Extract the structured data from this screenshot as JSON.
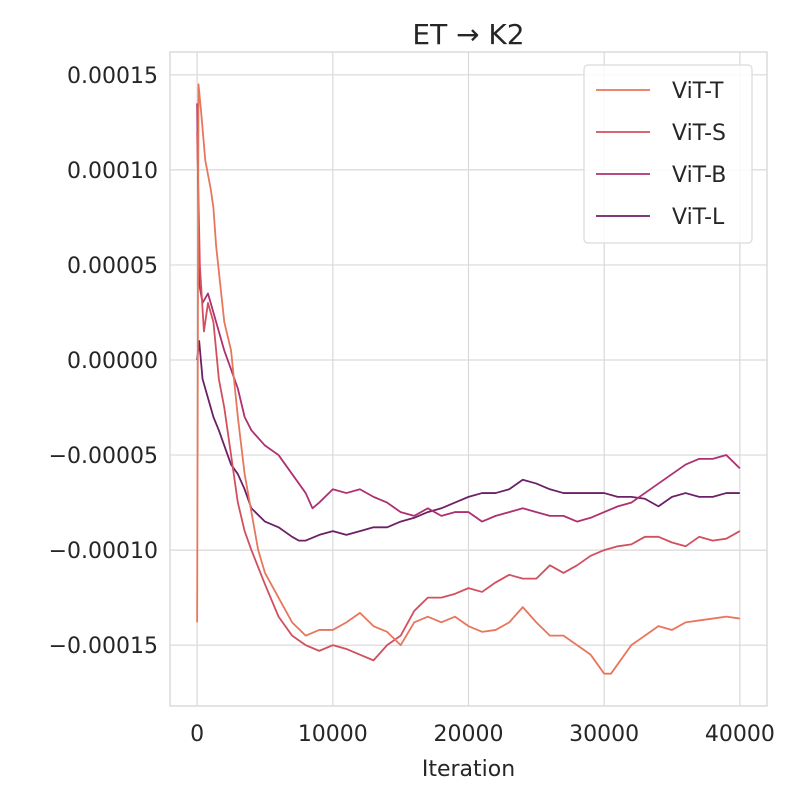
{
  "chart_data": {
    "type": "line",
    "title": "ET → K2",
    "xlabel": "Iteration",
    "ylabel": "",
    "xlim": [
      -2000,
      42000
    ],
    "ylim": [
      -0.000182,
      0.000162
    ],
    "xticks": [
      0,
      10000,
      20000,
      30000,
      40000
    ],
    "xtick_labels": [
      "0",
      "10000",
      "20000",
      "30000",
      "40000"
    ],
    "yticks": [
      0.00015,
      0.0001,
      5e-05,
      0.0,
      -5e-05,
      -0.0001,
      -0.00015
    ],
    "ytick_labels": [
      "0.00015",
      "0.00010",
      "0.00005",
      "0.00000",
      "−0.00005",
      "−0.00010",
      "−0.00015"
    ],
    "grid": true,
    "legend_position": "top-right",
    "series": [
      {
        "name": "ViT-T",
        "color": "#e8765c",
        "x": [
          0,
          100,
          300,
          600,
          1000,
          1200,
          1400,
          1700,
          2000,
          2500,
          3000,
          3500,
          4000,
          4500,
          5000,
          6000,
          7000,
          8000,
          9000,
          10000,
          11000,
          12000,
          13000,
          14000,
          15000,
          16000,
          17000,
          18000,
          19000,
          20000,
          21000,
          22000,
          23000,
          24000,
          25000,
          26000,
          27000,
          28000,
          29000,
          30000,
          30500,
          31000,
          32000,
          33000,
          34000,
          35000,
          36000,
          37000,
          38000,
          39000,
          40000
        ],
        "y": [
          -0.000138,
          0.000145,
          0.00013,
          0.000105,
          9e-05,
          8e-05,
          6e-05,
          4e-05,
          2e-05,
          5e-06,
          -3e-05,
          -6e-05,
          -8e-05,
          -0.0001,
          -0.000112,
          -0.000125,
          -0.000138,
          -0.000145,
          -0.000142,
          -0.000142,
          -0.000138,
          -0.000133,
          -0.00014,
          -0.000143,
          -0.00015,
          -0.000138,
          -0.000135,
          -0.000138,
          -0.000135,
          -0.00014,
          -0.000143,
          -0.000142,
          -0.000138,
          -0.00013,
          -0.000138,
          -0.000145,
          -0.000145,
          -0.00015,
          -0.000155,
          -0.000165,
          -0.000165,
          -0.00016,
          -0.00015,
          -0.000145,
          -0.00014,
          -0.000142,
          -0.000138,
          -0.000137,
          -0.000136,
          -0.000135,
          -0.000136
        ]
      },
      {
        "name": "ViT-S",
        "color": "#d24f5e",
        "x": [
          0,
          200,
          500,
          800,
          1200,
          1600,
          2000,
          2500,
          3000,
          3500,
          4000,
          5000,
          6000,
          7000,
          8000,
          9000,
          10000,
          11000,
          12000,
          13000,
          14000,
          15000,
          16000,
          17000,
          18000,
          19000,
          20000,
          21000,
          22000,
          23000,
          24000,
          25000,
          26000,
          27000,
          28000,
          29000,
          30000,
          31000,
          32000,
          33000,
          34000,
          35000,
          36000,
          37000,
          38000,
          39000,
          40000
        ],
        "y": [
          0.00012,
          5e-05,
          1.5e-05,
          3e-05,
          2e-05,
          -1e-05,
          -2.5e-05,
          -5e-05,
          -7.5e-05,
          -9e-05,
          -0.0001,
          -0.000118,
          -0.000135,
          -0.000145,
          -0.00015,
          -0.000153,
          -0.00015,
          -0.000152,
          -0.000155,
          -0.000158,
          -0.00015,
          -0.000145,
          -0.000132,
          -0.000125,
          -0.000125,
          -0.000123,
          -0.00012,
          -0.000122,
          -0.000117,
          -0.000113,
          -0.000115,
          -0.000115,
          -0.000108,
          -0.000112,
          -0.000108,
          -0.000103,
          -0.0001,
          -9.8e-05,
          -9.7e-05,
          -9.3e-05,
          -9.3e-05,
          -9.6e-05,
          -9.8e-05,
          -9.3e-05,
          -9.5e-05,
          -9.4e-05,
          -9e-05
        ]
      },
      {
        "name": "ViT-B",
        "color": "#ad3170",
        "x": [
          0,
          150,
          400,
          800,
          1200,
          1600,
          2000,
          2500,
          3000,
          3500,
          4000,
          5000,
          6000,
          7000,
          8000,
          8500,
          9000,
          10000,
          11000,
          12000,
          13000,
          14000,
          15000,
          16000,
          17000,
          18000,
          19000,
          20000,
          21000,
          22000,
          23000,
          24000,
          25000,
          26000,
          27000,
          28000,
          29000,
          30000,
          31000,
          32000,
          33000,
          34000,
          35000,
          36000,
          37000,
          38000,
          39000,
          40000
        ],
        "y": [
          0.000135,
          4e-05,
          3e-05,
          3.5e-05,
          2.5e-05,
          1.5e-05,
          5e-06,
          -5e-06,
          -1.5e-05,
          -3e-05,
          -3.7e-05,
          -4.5e-05,
          -5e-05,
          -6e-05,
          -7e-05,
          -7.8e-05,
          -7.5e-05,
          -6.8e-05,
          -7e-05,
          -6.8e-05,
          -7.2e-05,
          -7.5e-05,
          -8e-05,
          -8.2e-05,
          -7.8e-05,
          -8.2e-05,
          -8e-05,
          -8e-05,
          -8.5e-05,
          -8.2e-05,
          -8e-05,
          -7.8e-05,
          -8e-05,
          -8.2e-05,
          -8.2e-05,
          -8.5e-05,
          -8.3e-05,
          -8e-05,
          -7.7e-05,
          -7.5e-05,
          -7e-05,
          -6.5e-05,
          -6e-05,
          -5.5e-05,
          -5.2e-05,
          -5.2e-05,
          -5e-05,
          -5.7e-05
        ]
      },
      {
        "name": "ViT-L",
        "color": "#6b2167",
        "x": [
          0,
          150,
          400,
          800,
          1200,
          1600,
          2000,
          2500,
          3000,
          3500,
          4000,
          5000,
          6000,
          7000,
          7500,
          8000,
          9000,
          10000,
          11000,
          12000,
          13000,
          14000,
          15000,
          16000,
          17000,
          18000,
          19000,
          20000,
          21000,
          22000,
          23000,
          24000,
          25000,
          26000,
          27000,
          28000,
          29000,
          30000,
          31000,
          32000,
          33000,
          34000,
          35000,
          36000,
          37000,
          38000,
          39000,
          40000
        ],
        "y": [
          0.0,
          1e-05,
          -1e-05,
          -2e-05,
          -3e-05,
          -3.7e-05,
          -4.5e-05,
          -5.5e-05,
          -6e-05,
          -6.8e-05,
          -7.8e-05,
          -8.5e-05,
          -8.8e-05,
          -9.3e-05,
          -9.5e-05,
          -9.5e-05,
          -9.2e-05,
          -9e-05,
          -9.2e-05,
          -9e-05,
          -8.8e-05,
          -8.8e-05,
          -8.5e-05,
          -8.3e-05,
          -8e-05,
          -7.8e-05,
          -7.5e-05,
          -7.2e-05,
          -7e-05,
          -7e-05,
          -6.8e-05,
          -6.3e-05,
          -6.5e-05,
          -6.8e-05,
          -7e-05,
          -7e-05,
          -7e-05,
          -7e-05,
          -7.2e-05,
          -7.2e-05,
          -7.3e-05,
          -7.7e-05,
          -7.2e-05,
          -7e-05,
          -7.2e-05,
          -7.2e-05,
          -7e-05,
          -7e-05
        ]
      }
    ]
  }
}
